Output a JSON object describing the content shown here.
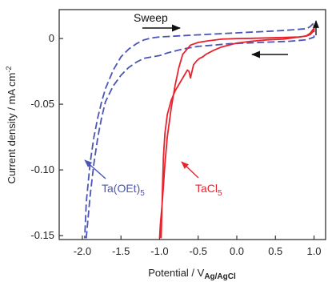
{
  "chart_data": {
    "type": "line",
    "xlabel_main": "Potential  /  V",
    "xlabel_sub": "Ag/AgCl",
    "ylabel_main": "Current density  /  mA cm",
    "ylabel_sup": "-2",
    "xlim": [
      -2.3,
      1.15
    ],
    "ylim": [
      -0.153,
      0.022
    ],
    "x_ticks": [
      -2.0,
      -1.5,
      -1.0,
      -0.5,
      0.0,
      0.5,
      1.0
    ],
    "x_tick_labels": [
      "-2.0",
      "-1.5",
      "-1.0",
      "-0.5",
      "0.0",
      "0.5",
      "1.0"
    ],
    "y_ticks": [
      0,
      -0.05,
      -0.1,
      -0.15
    ],
    "y_tick_labels": [
      "0",
      "-0.05",
      "-0.10",
      "-0.15"
    ],
    "grid": false,
    "series": [
      {
        "name": "Ta(OEt)5",
        "color": "#4a55b8",
        "dash": true,
        "x": [
          -1.95,
          -1.9,
          -1.85,
          -1.8,
          -1.75,
          -1.7,
          -1.6,
          -1.5,
          -1.4,
          -1.3,
          -1.2,
          -1.1,
          -1.0,
          -0.9,
          -0.7,
          -0.5,
          -0.3,
          -0.1,
          0.1,
          0.3,
          0.5,
          0.7,
          0.9,
          1.0,
          1.0,
          0.95,
          0.9,
          0.7,
          0.5,
          0.3,
          0.1,
          -0.1,
          -0.3,
          -0.5,
          -0.7,
          -0.9,
          -1.0,
          -1.1,
          -1.2,
          -1.3,
          -1.4,
          -1.5,
          -1.6,
          -1.7,
          -1.75,
          -1.8,
          -1.85,
          -1.9,
          -1.95,
          -1.97
        ],
        "y": [
          -0.152,
          -0.12,
          -0.095,
          -0.075,
          -0.06,
          -0.048,
          -0.036,
          -0.028,
          -0.022,
          -0.018,
          -0.015,
          -0.014,
          -0.013,
          -0.011,
          -0.008,
          -0.006,
          -0.005,
          -0.004,
          -0.0035,
          -0.003,
          -0.0025,
          -0.002,
          -0.001,
          0.001,
          0.012,
          0.009,
          0.0075,
          0.0065,
          0.0058,
          0.0052,
          0.0046,
          0.004,
          0.0034,
          0.0028,
          0.0022,
          0.0015,
          0.0012,
          0.0005,
          -0.001,
          -0.004,
          -0.008,
          -0.014,
          -0.024,
          -0.038,
          -0.048,
          -0.06,
          -0.075,
          -0.095,
          -0.125,
          -0.152
        ]
      },
      {
        "name": "TaCl5",
        "color": "#e8232e",
        "dash": false,
        "x": [
          -0.98,
          -0.97,
          -0.96,
          -0.95,
          -0.93,
          -0.9,
          -0.85,
          -0.8,
          -0.75,
          -0.7,
          -0.68,
          -0.66,
          -0.64,
          -0.62,
          -0.6,
          -0.58,
          -0.56,
          -0.52,
          -0.48,
          -0.44,
          -0.4,
          -0.3,
          -0.2,
          -0.1,
          0.0,
          0.2,
          0.4,
          0.6,
          0.8,
          0.9,
          0.95,
          1.0,
          1.0,
          0.95,
          0.9,
          0.8,
          0.6,
          0.4,
          0.2,
          0.0,
          -0.2,
          -0.4,
          -0.5,
          -0.6,
          -0.7,
          -0.75,
          -0.8,
          -0.85,
          -0.9,
          -0.93,
          -0.95,
          -0.97,
          -0.99,
          -1.0
        ],
        "y": [
          -0.152,
          -0.13,
          -0.11,
          -0.09,
          -0.072,
          -0.058,
          -0.047,
          -0.04,
          -0.035,
          -0.03,
          -0.028,
          -0.026,
          -0.024,
          -0.025,
          -0.03,
          -0.025,
          -0.02,
          -0.017,
          -0.015,
          -0.014,
          -0.012,
          -0.009,
          -0.0065,
          -0.005,
          -0.0035,
          -0.002,
          -0.001,
          -0.0005,
          0.001,
          0.002,
          0.004,
          0.008,
          0.006,
          0.003,
          0.0018,
          0.0012,
          0.0008,
          0.0005,
          0.0002,
          0.0,
          -0.0005,
          -0.002,
          -0.003,
          -0.005,
          -0.012,
          -0.022,
          -0.036,
          -0.053,
          -0.075,
          -0.095,
          -0.112,
          -0.128,
          -0.142,
          -0.152
        ]
      }
    ],
    "annotations": {
      "sweep_label": "Sweep",
      "ta_oet_base": "Ta(OEt)",
      "ta_oet_sub": "5",
      "tacl_base": "TaCl",
      "tacl_sub": "5"
    }
  }
}
